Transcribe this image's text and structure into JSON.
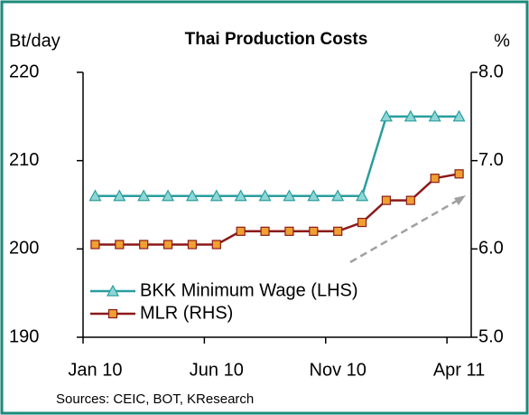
{
  "chart_data": {
    "type": "line",
    "title": "Thai Production Costs",
    "ylabel": "Bt/day",
    "y2label": "%",
    "categories": [
      "Jan 10",
      null,
      null,
      null,
      null,
      "Jun 10",
      null,
      null,
      null,
      null,
      "Nov 10",
      null,
      null,
      null,
      null,
      "Apr 11"
    ],
    "series": [
      {
        "name": "BKK Minimum Wage (LHS)",
        "color": "#2a9d9d",
        "marker_fill": "#8fd6d6",
        "marker": "triangle",
        "values": [
          206,
          206,
          206,
          206,
          206,
          206,
          206,
          206,
          206,
          206,
          206,
          206,
          215,
          215,
          215,
          215
        ]
      },
      {
        "name": "MLR (RHS)",
        "color": "#8b1a1a",
        "marker_fill": "#f0a030",
        "marker": "square",
        "axis": "y2",
        "values": [
          6.05,
          6.05,
          6.05,
          6.05,
          6.05,
          6.05,
          6.2,
          6.2,
          6.2,
          6.2,
          6.2,
          6.3,
          6.55,
          6.55,
          6.8,
          6.85
        ]
      }
    ],
    "ylim": [
      190,
      220
    ],
    "yticks": [
      190,
      200,
      210,
      220
    ],
    "y2lim": [
      5,
      8
    ],
    "y2ticks": [
      {
        "value": 5,
        "label": "5.0"
      },
      {
        "value": 6,
        "label": "6.0"
      },
      {
        "value": 7,
        "label": "7.0"
      },
      {
        "value": 8,
        "label": "8.0"
      }
    ],
    "source": "Sources: CEIC, BOT, KResearch"
  }
}
